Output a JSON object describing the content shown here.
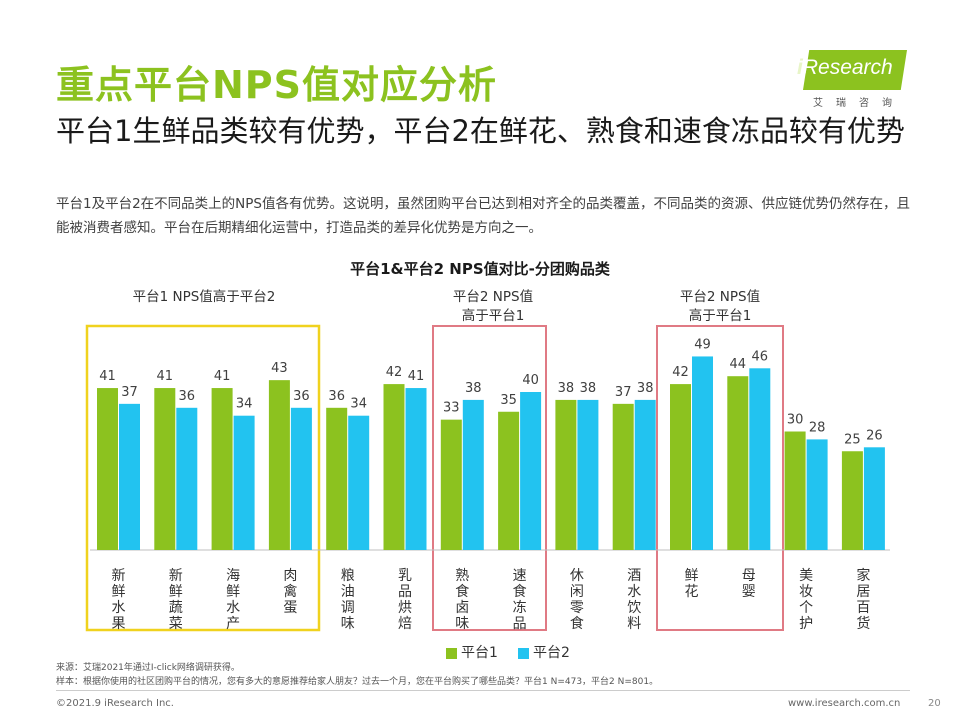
{
  "header": {
    "title": "重点平台NPS值对应分析",
    "subtitle": "平台1生鲜品类较有优势，平台2在鲜花、熟食和速食冻品较有优势",
    "description": "平台1及平台2在不同品类上的NPS值各有优势。这说明，虽然团购平台已达到相对齐全的品类覆盖，不同品类的资源、供应链优势仍然存在，且能被消费者感知。平台在后期精细化运营中，打造品类的差异化优势是方向之一。"
  },
  "logo": {
    "brand": "iResearch",
    "brand_i": "i",
    "brand_rest": "Research",
    "cn": "艾瑞咨询"
  },
  "colors": {
    "title_green": "#8cc21f",
    "platform1": "#8cc21f",
    "platform2": "#22c3f0",
    "box_yellow": "#f0d21e",
    "box_red": "#e07a84"
  },
  "group_labels": {
    "g1": "平台1 NPS值高于平台2",
    "g2_line1": "平台2 NPS值",
    "g2_line2": "高于平台1",
    "g3_line1": "平台2 NPS值",
    "g3_line2": "高于平台1"
  },
  "chart_data": {
    "type": "bar",
    "title": "平台1&平台2 NPS值对比-分团购品类",
    "categories": [
      "新鲜水果",
      "新鲜蔬菜",
      "海鲜水产",
      "肉禽蛋",
      "粮油调味",
      "乳品烘焙",
      "熟食卤味",
      "速食冻品",
      "休闲零食",
      "酒水饮料",
      "鲜花",
      "母婴",
      "美妆个护",
      "家居百货"
    ],
    "series": [
      {
        "name": "平台1",
        "values": [
          41,
          41,
          41,
          43,
          36,
          42,
          33,
          35,
          38,
          37,
          42,
          44,
          30,
          25
        ]
      },
      {
        "name": "平台2",
        "values": [
          37,
          36,
          34,
          36,
          34,
          41,
          38,
          40,
          38,
          38,
          49,
          46,
          28,
          26
        ]
      }
    ],
    "ylim": [
      0,
      60
    ],
    "legend_position": "bottom",
    "grid": false
  },
  "notes": {
    "source": "来源：艾瑞2021年通过I-click网络调研获得。",
    "sample": "样本：根据你使用的社区团购平台的情况，您有多大的意愿推荐给家人朋友？过去一个月，您在平台购买了哪些品类？平台1 N=473，平台2 N=801。"
  },
  "footer": {
    "copyright": "©2021.9 iResearch Inc.",
    "website": "www.iresearch.com.cn",
    "page_number": "20"
  }
}
